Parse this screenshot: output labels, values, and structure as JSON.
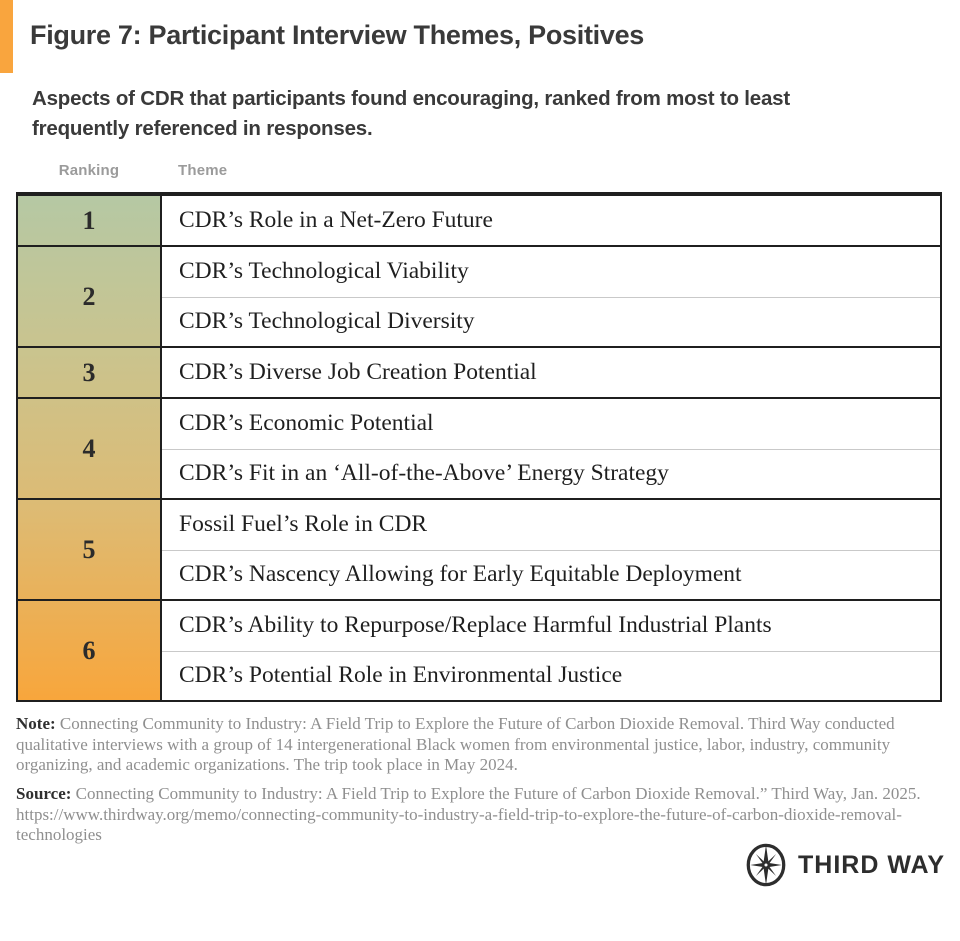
{
  "accent_color": "#F9A53E",
  "header": {
    "title": "Figure 7: Participant Interview Themes, Positives",
    "subtitle": "Aspects of CDR that participants found encouraging, ranked from most to least frequently referenced in responses."
  },
  "table": {
    "column_headers": {
      "ranking": "Ranking",
      "theme": "Theme"
    },
    "gradient_top_color": "#B5C8A4",
    "gradient_bottom_color": "#F8A63C",
    "groups": [
      {
        "rank": "1",
        "themes": [
          "CDR’s Role in a Net-Zero Future"
        ]
      },
      {
        "rank": "2",
        "themes": [
          "CDR’s Technological Viability",
          "CDR’s Technological Diversity"
        ]
      },
      {
        "rank": "3",
        "themes": [
          "CDR’s Diverse Job Creation Potential"
        ]
      },
      {
        "rank": "4",
        "themes": [
          "CDR’s Economic Potential",
          "CDR’s Fit in an ‘All-of-the-Above’ Energy Strategy"
        ]
      },
      {
        "rank": "5",
        "themes": [
          "Fossil Fuel’s Role in CDR",
          "CDR’s Nascency Allowing for Early Equitable Deployment"
        ]
      },
      {
        "rank": "6",
        "themes": [
          "CDR’s Ability to Repurpose/Replace Harmful Industrial Plants",
          "CDR’s Potential Role in Environmental Justice"
        ]
      }
    ]
  },
  "note": {
    "label": "Note:",
    "text": " Connecting Community to Industry: A Field Trip to Explore the Future of Carbon Dioxide Removal. Third Way conducted qualitative interviews with a group of 14 intergenerational Black women from environmental justice, labor, industry, community organizing, and academic organizations. The trip took place in May 2024."
  },
  "source": {
    "label": "Source:",
    "text": " Connecting Community to Industry: A Field Trip to Explore the Future of Carbon Dioxide Removal.” Third Way, Jan. 2025. https://www.thirdway.org/memo/connecting-community-to-industry-a-field-trip-to-explore-the-future-of-carbon-dioxide-removal-technologies"
  },
  "logo": {
    "text": "THIRD WAY",
    "icon": "compass-star-icon"
  },
  "chart_data": {
    "type": "table",
    "title": "Figure 7: Participant Interview Themes, Positives",
    "subtitle": "Aspects of CDR that participants found encouraging, ranked from most to least frequently referenced in responses.",
    "columns": [
      "Ranking",
      "Theme"
    ],
    "rows": [
      [
        1,
        "CDR’s Role in a Net-Zero Future"
      ],
      [
        2,
        "CDR’s Technological Viability"
      ],
      [
        2,
        "CDR’s Technological Diversity"
      ],
      [
        3,
        "CDR’s Diverse Job Creation Potential"
      ],
      [
        4,
        "CDR’s Economic Potential"
      ],
      [
        4,
        "CDR’s Fit in an ‘All-of-the-Above’ Energy Strategy"
      ],
      [
        5,
        "Fossil Fuel’s Role in CDR"
      ],
      [
        5,
        "CDR’s Nascency Allowing for Early Equitable Deployment"
      ],
      [
        6,
        "CDR’s Ability to Repurpose/Replace Harmful Industrial Plants"
      ],
      [
        6,
        "CDR’s Potential Role in Environmental Justice"
      ]
    ],
    "layout_hints": {
      "rank_column_gradient": [
        "#B5C8A4",
        "#F8A63C"
      ],
      "grid": "on"
    }
  }
}
